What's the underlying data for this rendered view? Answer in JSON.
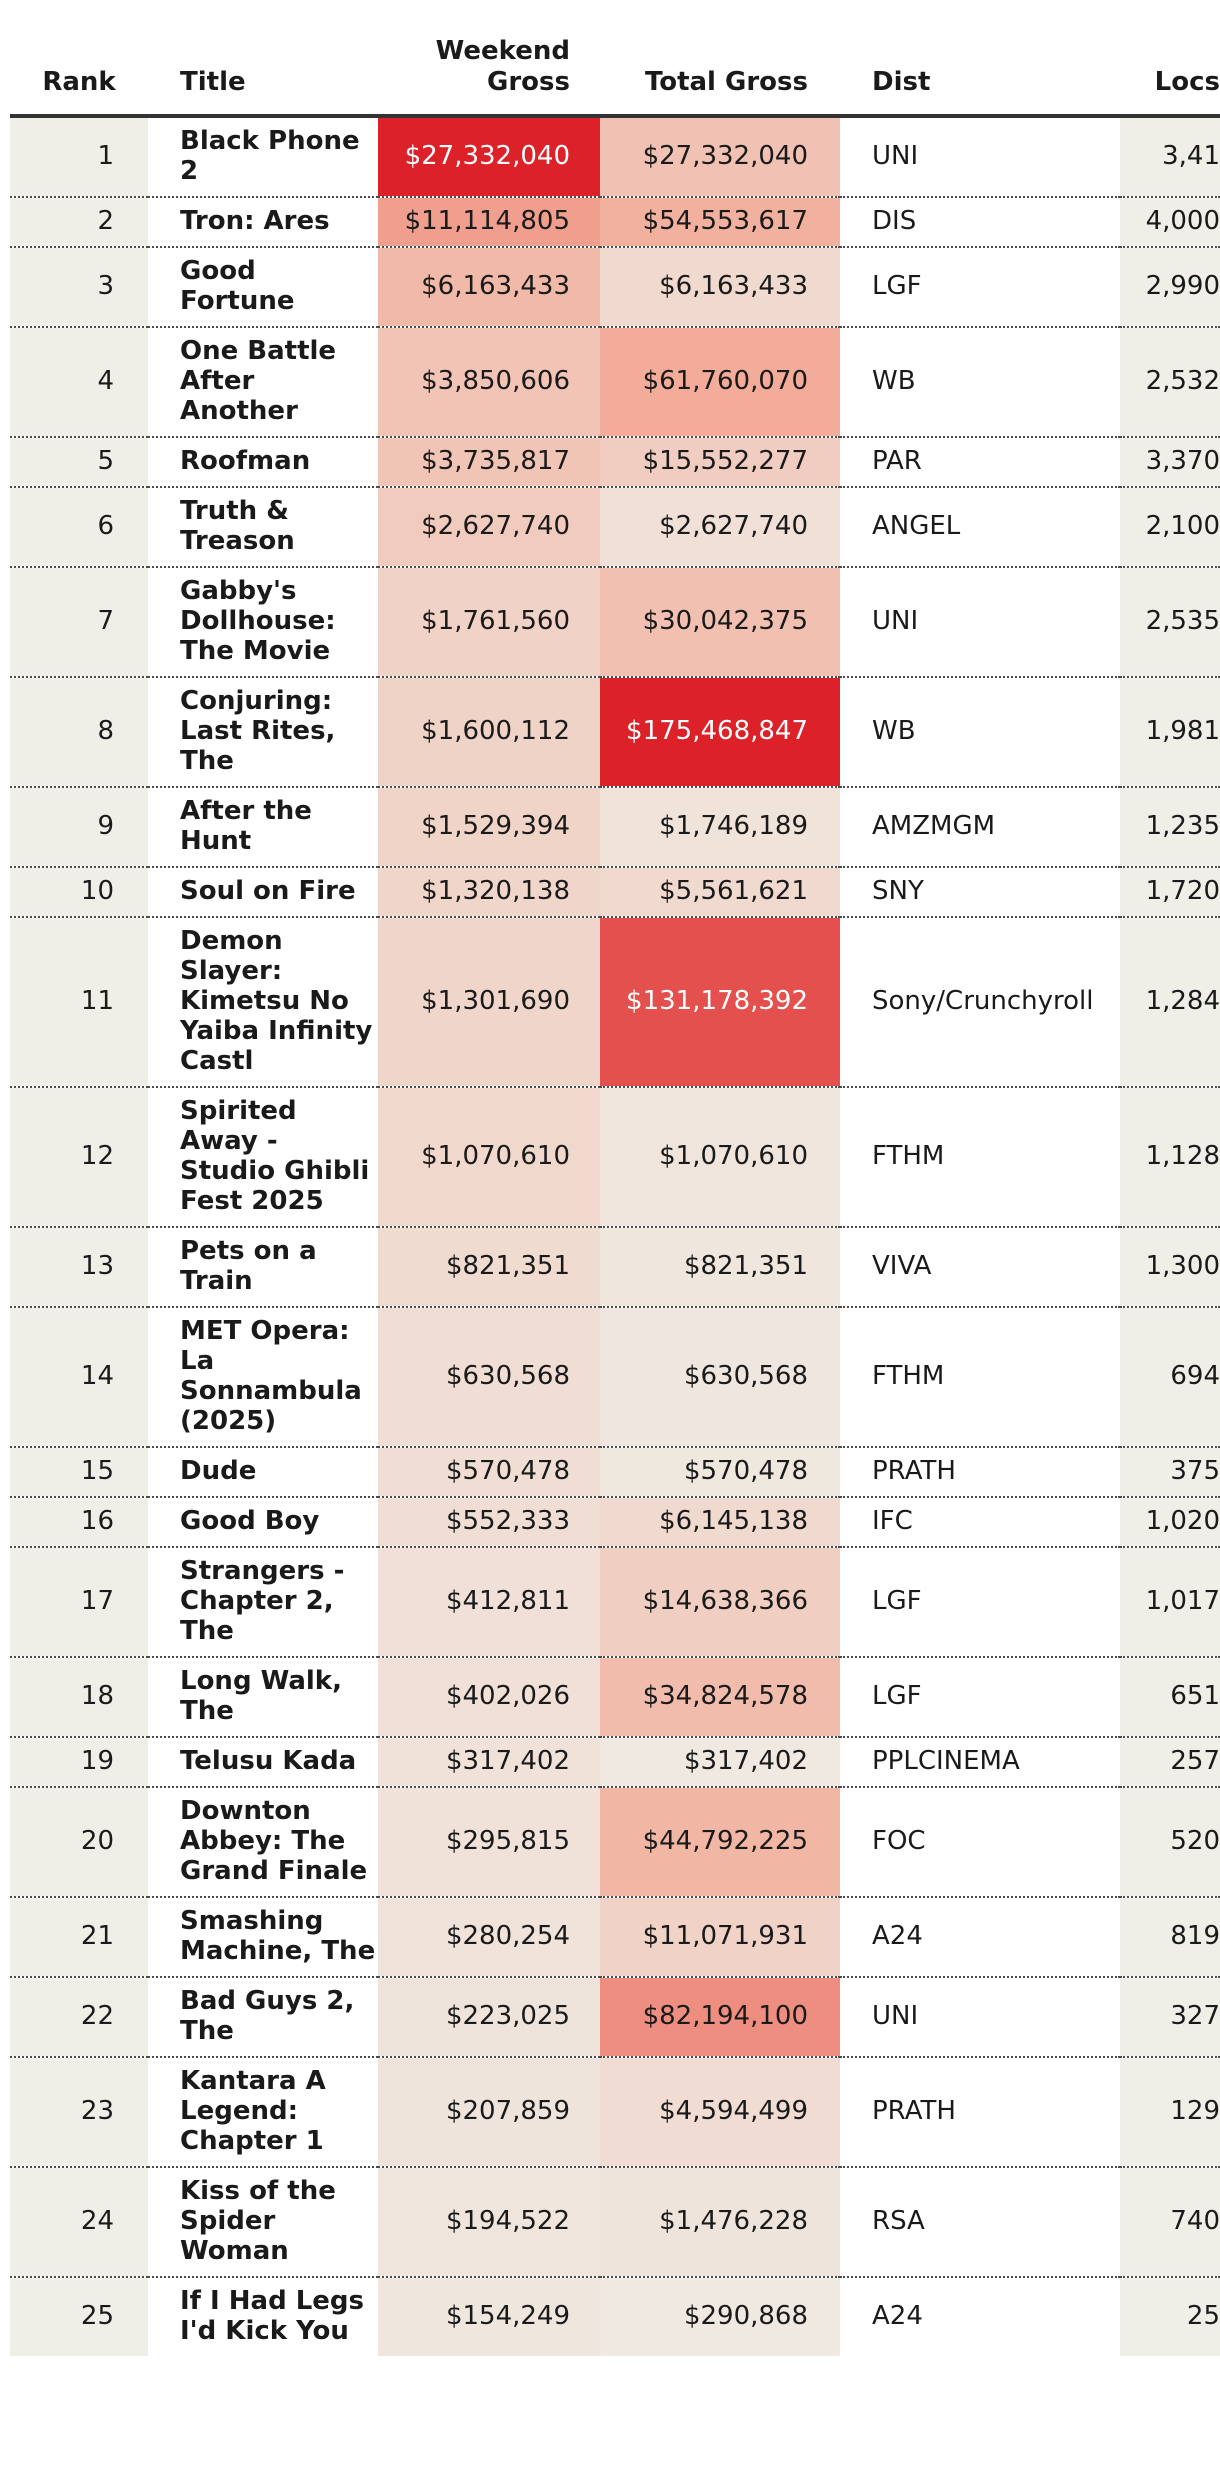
{
  "chart_data": {
    "type": "table",
    "columns": [
      "Rank",
      "Title",
      "Weekend\nGross",
      "Total Gross",
      "Dist",
      "Locs"
    ],
    "rows": [
      {
        "rank": "1",
        "title": "Black Phone 2",
        "weekend": "$27,332,040",
        "total": "$27,332,040",
        "dist": "UNI",
        "locs": "3,41",
        "weekend_value": 27332040,
        "total_value": 27332040
      },
      {
        "rank": "2",
        "title": "Tron: Ares",
        "weekend": "$11,114,805",
        "total": "$54,553,617",
        "dist": "DIS",
        "locs": "4,000",
        "weekend_value": 11114805,
        "total_value": 54553617
      },
      {
        "rank": "3",
        "title": "Good Fortune",
        "weekend": "$6,163,433",
        "total": "$6,163,433",
        "dist": "LGF",
        "locs": "2,990",
        "weekend_value": 6163433,
        "total_value": 6163433
      },
      {
        "rank": "4",
        "title": "One Battle After Another",
        "weekend": "$3,850,606",
        "total": "$61,760,070",
        "dist": "WB",
        "locs": "2,532",
        "weekend_value": 3850606,
        "total_value": 61760070
      },
      {
        "rank": "5",
        "title": "Roofman",
        "weekend": "$3,735,817",
        "total": "$15,552,277",
        "dist": "PAR",
        "locs": "3,370",
        "weekend_value": 3735817,
        "total_value": 15552277
      },
      {
        "rank": "6",
        "title": "Truth & Treason",
        "weekend": "$2,627,740",
        "total": "$2,627,740",
        "dist": "ANGEL",
        "locs": "2,100",
        "weekend_value": 2627740,
        "total_value": 2627740
      },
      {
        "rank": "7",
        "title": "Gabby's Dollhouse: The Movie",
        "weekend": "$1,761,560",
        "total": "$30,042,375",
        "dist": "UNI",
        "locs": "2,535",
        "weekend_value": 1761560,
        "total_value": 30042375
      },
      {
        "rank": "8",
        "title": "Conjuring: Last Rites, The",
        "weekend": "$1,600,112",
        "total": "$175,468,847",
        "dist": "WB",
        "locs": "1,981",
        "weekend_value": 1600112,
        "total_value": 175468847
      },
      {
        "rank": "9",
        "title": "After the Hunt",
        "weekend": "$1,529,394",
        "total": "$1,746,189",
        "dist": "AMZMGM",
        "locs": "1,235",
        "weekend_value": 1529394,
        "total_value": 1746189
      },
      {
        "rank": "10",
        "title": "Soul on Fire",
        "weekend": "$1,320,138",
        "total": "$5,561,621",
        "dist": "SNY",
        "locs": "1,720",
        "weekend_value": 1320138,
        "total_value": 5561621
      },
      {
        "rank": "11",
        "title": "Demon Slayer: Kimetsu No Yaiba Infinity Castl",
        "weekend": "$1,301,690",
        "total": "$131,178,392",
        "dist": "Sony/Crunchyroll",
        "locs": "1,284",
        "weekend_value": 1301690,
        "total_value": 131178392
      },
      {
        "rank": "12",
        "title": "Spirited Away - Studio Ghibli Fest 2025",
        "weekend": "$1,070,610",
        "total": "$1,070,610",
        "dist": "FTHM",
        "locs": "1,128",
        "weekend_value": 1070610,
        "total_value": 1070610
      },
      {
        "rank": "13",
        "title": "Pets on a Train",
        "weekend": "$821,351",
        "total": "$821,351",
        "dist": "VIVA",
        "locs": "1,300",
        "weekend_value": 821351,
        "total_value": 821351
      },
      {
        "rank": "14",
        "title": "MET Opera: La Sonnambula (2025)",
        "weekend": "$630,568",
        "total": "$630,568",
        "dist": "FTHM",
        "locs": "694",
        "weekend_value": 630568,
        "total_value": 630568
      },
      {
        "rank": "15",
        "title": "Dude",
        "weekend": "$570,478",
        "total": "$570,478",
        "dist": "PRATH",
        "locs": "375",
        "weekend_value": 570478,
        "total_value": 570478
      },
      {
        "rank": "16",
        "title": "Good Boy",
        "weekend": "$552,333",
        "total": "$6,145,138",
        "dist": "IFC",
        "locs": "1,020",
        "weekend_value": 552333,
        "total_value": 6145138
      },
      {
        "rank": "17",
        "title": "Strangers - Chapter 2, The",
        "weekend": "$412,811",
        "total": "$14,638,366",
        "dist": "LGF",
        "locs": "1,017",
        "weekend_value": 412811,
        "total_value": 14638366
      },
      {
        "rank": "18",
        "title": "Long Walk, The",
        "weekend": "$402,026",
        "total": "$34,824,578",
        "dist": "LGF",
        "locs": "651",
        "weekend_value": 402026,
        "total_value": 34824578
      },
      {
        "rank": "19",
        "title": "Telusu Kada",
        "weekend": "$317,402",
        "total": "$317,402",
        "dist": "PPLCINEMA",
        "locs": "257",
        "weekend_value": 317402,
        "total_value": 317402
      },
      {
        "rank": "20",
        "title": "Downton Abbey: The Grand Finale",
        "weekend": "$295,815",
        "total": "$44,792,225",
        "dist": "FOC",
        "locs": "520",
        "weekend_value": 295815,
        "total_value": 44792225
      },
      {
        "rank": "21",
        "title": "Smashing Machine, The",
        "weekend": "$280,254",
        "total": "$11,071,931",
        "dist": "A24",
        "locs": "819",
        "weekend_value": 280254,
        "total_value": 11071931
      },
      {
        "rank": "22",
        "title": "Bad Guys 2, The",
        "weekend": "$223,025",
        "total": "$82,194,100",
        "dist": "UNI",
        "locs": "327",
        "weekend_value": 223025,
        "total_value": 82194100
      },
      {
        "rank": "23",
        "title": "Kantara A Legend: Chapter 1",
        "weekend": "$207,859",
        "total": "$4,594,499",
        "dist": "PRATH",
        "locs": "129",
        "weekend_value": 207859,
        "total_value": 4594499
      },
      {
        "rank": "24",
        "title": "Kiss of the Spider Woman",
        "weekend": "$194,522",
        "total": "$1,476,228",
        "dist": "RSA",
        "locs": "740",
        "weekend_value": 194522,
        "total_value": 1476228
      },
      {
        "rank": "25",
        "title": "If I Had Legs I'd Kick You",
        "weekend": "$154,249",
        "total": "$290,868",
        "dist": "A24",
        "locs": "25",
        "weekend_value": 154249,
        "total_value": 290868
      }
    ],
    "color_scale": {
      "low": "#efeee7",
      "mid": "#f2ab98",
      "high": "#dc2128",
      "weekend_max": 27332040,
      "total_max": 175468847
    }
  }
}
